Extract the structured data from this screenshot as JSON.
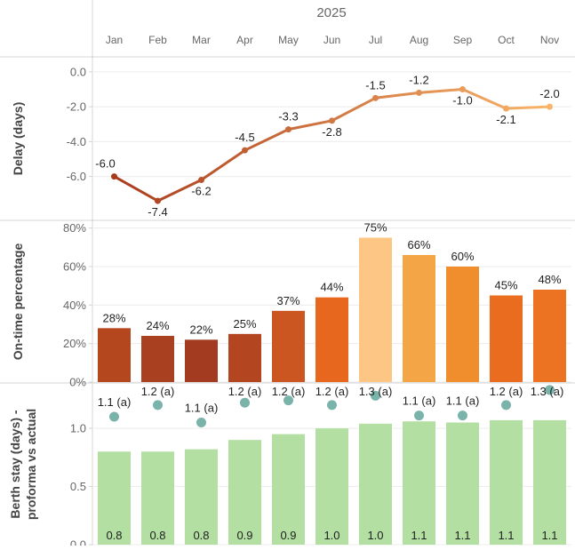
{
  "chart_data": {
    "type": "combo",
    "title": "2025",
    "categories": [
      "Jan",
      "Feb",
      "Mar",
      "Apr",
      "May",
      "Jun",
      "Jul",
      "Aug",
      "Sep",
      "Oct",
      "Nov"
    ],
    "panels": [
      {
        "id": "delay",
        "type": "line",
        "ylabel": "Delay (days)",
        "ylim": [
          -7.6,
          0.3
        ],
        "yticks": [
          0,
          -2,
          -4,
          -6
        ],
        "ytick_labels": [
          "0.0",
          "-2.0",
          "-4.0",
          "-6.0"
        ],
        "values": [
          -6.0,
          -7.4,
          -6.2,
          -4.5,
          -3.3,
          -2.8,
          -1.5,
          -1.2,
          -1.0,
          -2.1,
          -2.0
        ],
        "labels": [
          "-6.0",
          "-7.4",
          "-6.2",
          "-4.5",
          "-3.3",
          "-2.8",
          "-1.5",
          "-1.2",
          "-1.0",
          "-2.1",
          "-2.0"
        ]
      },
      {
        "id": "ontime",
        "type": "bar",
        "ylabel": "On-time percentage",
        "ylim": [
          0,
          84
        ],
        "yticks": [
          0,
          20,
          40,
          60,
          80
        ],
        "ytick_labels": [
          "0%",
          "20%",
          "40%",
          "60%",
          "80%"
        ],
        "values": [
          28,
          24,
          22,
          25,
          37,
          44,
          75,
          66,
          60,
          45,
          48
        ],
        "labels": [
          "28%",
          "24%",
          "22%",
          "25%",
          "37%",
          "44%",
          "75%",
          "66%",
          "60%",
          "45%",
          "48%"
        ],
        "colors": [
          "#b5471f",
          "#a9401f",
          "#a23b1f",
          "#b34520",
          "#cc5622",
          "#e8671e",
          "#fdc685",
          "#f4a545",
          "#f08d2d",
          "#ea6c1f",
          "#ec7322"
        ]
      },
      {
        "id": "berth",
        "type": "bar+dot",
        "ylabel_line1": "Berth stay (days) -",
        "ylabel_line2": "proforma vs actual",
        "ylim": [
          0,
          1.39
        ],
        "yticks": [
          0,
          0.5,
          1.0
        ],
        "ytick_labels": [
          "0.0",
          "0.5",
          "1.0"
        ],
        "proforma_values": [
          0.8,
          0.8,
          0.82,
          0.9,
          0.95,
          1.0,
          1.04,
          1.06,
          1.05,
          1.07,
          1.07
        ],
        "proforma_labels": [
          "0.8",
          "0.8",
          "0.8",
          "0.9",
          "0.9",
          "1.0",
          "1.0",
          "1.1",
          "1.1",
          "1.1",
          "1.1"
        ],
        "actual_values": [
          1.1,
          1.2,
          1.05,
          1.22,
          1.24,
          1.2,
          1.28,
          1.11,
          1.11,
          1.2,
          1.33
        ],
        "actual_labels": [
          "1.1 (a)",
          "1.2 (a)",
          "1.1 (a)",
          "1.2 (a)",
          "1.2 (a)",
          "1.2 (a)",
          "1.3 (a)",
          "1.1 (a)",
          "1.1 (a)",
          "1.2 (a)",
          "1.3 (a)"
        ],
        "bar_color": "#b3dfa3",
        "dot_color": "#79b3aa"
      }
    ],
    "line_color_start": "#a93b1d",
    "line_color_end": "#f9b56a",
    "grid": true
  }
}
